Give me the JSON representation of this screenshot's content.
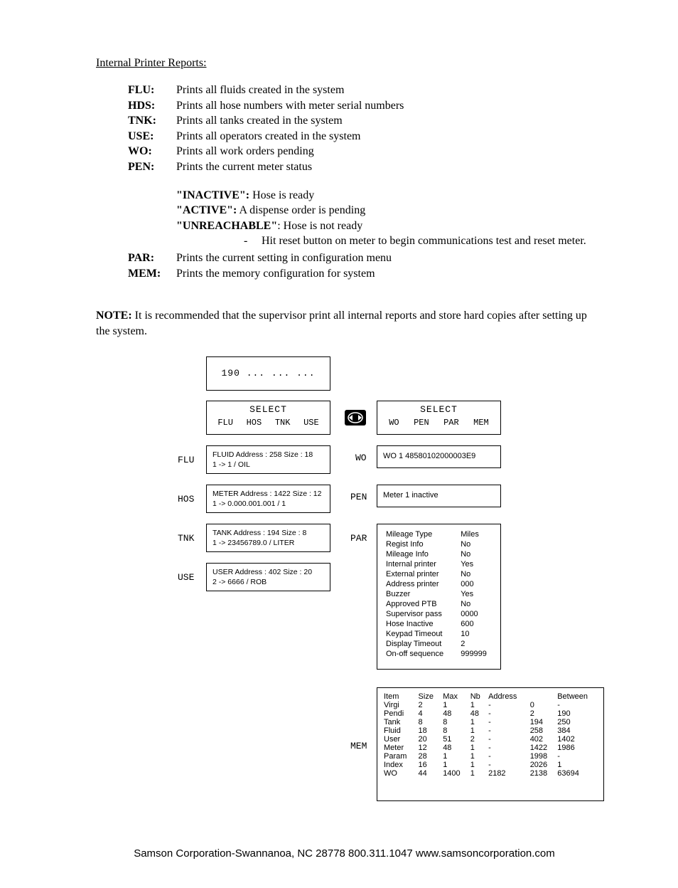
{
  "title": "Internal Printer Reports:",
  "definitions": [
    {
      "term": "FLU:",
      "desc": "Prints all fluids created in the system"
    },
    {
      "term": "HDS:",
      "desc": "Prints all hose numbers with meter serial numbers"
    },
    {
      "term": "TNK:",
      "desc": "Prints all tanks created in the system"
    },
    {
      "term": "USE:",
      "desc": "Prints all operators created in the system"
    },
    {
      "term": "WO:",
      "desc": "Prints all work orders pending"
    },
    {
      "term": "PEN:",
      "desc": "Prints the current meter status"
    }
  ],
  "statuses": [
    {
      "label": "\"INACTIVE\":",
      "desc": " Hose is ready"
    },
    {
      "label": "\"ACTIVE\":",
      "desc": " A dispense order is pending"
    },
    {
      "label": "\"UNREACHABLE\"",
      "desc": ": Hose is not ready"
    }
  ],
  "subbullet": {
    "dash": "-",
    "text": "Hit reset button on meter to begin communications test and reset meter."
  },
  "definitions2": [
    {
      "term": "PAR:",
      "desc": "Prints the current setting in configuration menu"
    },
    {
      "term": "MEM:",
      "desc": "Prints the memory configuration for system"
    }
  ],
  "note": {
    "label": "NOTE: ",
    "text": "It is recommended that the supervisor print all internal reports and store hard copies after setting up the system."
  },
  "diagram": {
    "topBox": "190  ...  ...  ...",
    "leftSelect": {
      "head": "SELECT",
      "opts": [
        "FLU",
        "HOS",
        "TNK",
        "USE"
      ]
    },
    "rightSelect": {
      "head": "SELECT",
      "opts": [
        "WO",
        "PEN",
        "PAR",
        "MEM"
      ]
    },
    "leftLabels": [
      "FLU",
      "HOS",
      "TNK",
      "USE"
    ],
    "leftBoxes": [
      "FLUID Address : 258 Size : 18\n1 ->  1 / OIL",
      "METER Address : 1422 Size : 12\n1 -> 0.000.001.001  / 1",
      "TANK Address : 194 Size : 8\n1 ->  23456789.0 / LITER",
      "USER Address : 402 Size : 20\n2 -> 6666  / ROB"
    ],
    "rightLabels": [
      "WO",
      "PEN",
      "PAR",
      "MEM"
    ],
    "woBox": "WO  1  48580102000003E9",
    "penBox": "Meter  1  inactive",
    "parRows": [
      [
        "Mileage Type",
        "Miles"
      ],
      [
        "Regist Info",
        "No"
      ],
      [
        "Mileage Info",
        "No"
      ],
      [
        "Internal printer",
        "Yes"
      ],
      [
        "External printer",
        "No"
      ],
      [
        "Address printer",
        "000"
      ],
      [
        "Buzzer",
        "Yes"
      ],
      [
        "Approved PTB",
        "No"
      ],
      [
        "Supervisor pass",
        "0000"
      ],
      [
        "Hose Inactive",
        "600"
      ],
      [
        "Keypad Timeout",
        "10"
      ],
      [
        "Display Timeout",
        "2"
      ],
      [
        "On-off sequence",
        "999999"
      ]
    ],
    "memHeaders": [
      "Item",
      "Size",
      "Max",
      "Nb",
      "Address",
      "",
      "Between"
    ],
    "memRows": [
      [
        "Virgi",
        "2",
        "1",
        "1",
        "-",
        "0",
        "-"
      ],
      [
        "Pendi",
        "4",
        "48",
        "48",
        "-",
        "2",
        "190"
      ],
      [
        "Tank",
        "8",
        "8",
        "1",
        "-",
        "194",
        "250"
      ],
      [
        "Fluid",
        "18",
        "8",
        "1",
        "-",
        "258",
        "384"
      ],
      [
        "User",
        "20",
        "51",
        "2",
        "-",
        "402",
        "1402"
      ],
      [
        "Meter",
        "12",
        "48",
        "1",
        "-",
        "1422",
        "1986"
      ],
      [
        "Param",
        "28",
        "1",
        "1",
        "-",
        "1998",
        "-"
      ],
      [
        "Index",
        "16",
        "1",
        "1",
        "-",
        "2026",
        "1"
      ],
      [
        "WO",
        "44",
        "1400",
        "1",
        "2182",
        "2138",
        "63694"
      ]
    ]
  },
  "footer": "Samson Corporation-Swannanoa, NC 28778  800.311.1047 www.samsoncorporation.com"
}
